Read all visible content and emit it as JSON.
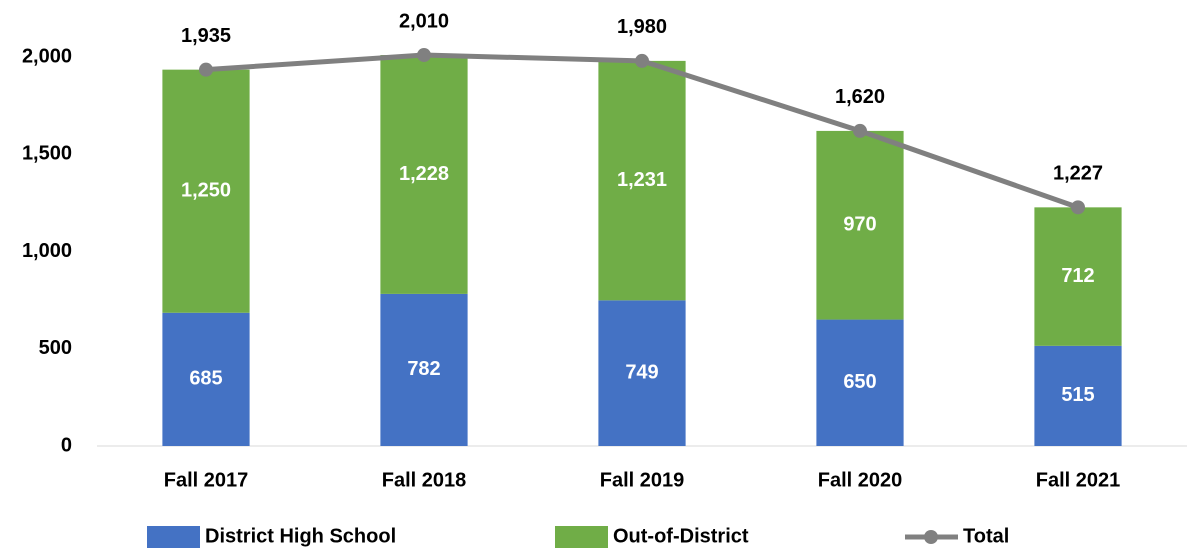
{
  "chart_data": {
    "type": "bar",
    "categories": [
      "Fall 2017",
      "Fall 2018",
      "Fall 2019",
      "Fall 2020",
      "Fall 2021"
    ],
    "series": [
      {
        "name": "District High School",
        "type": "bar",
        "color": "#4472c4",
        "values": [
          685,
          782,
          749,
          650,
          515
        ],
        "value_labels": [
          "685",
          "782",
          "749",
          "650",
          "515"
        ]
      },
      {
        "name": "Out-of-District",
        "type": "bar",
        "color": "#70ad47",
        "values": [
          1250,
          1228,
          1231,
          970,
          712
        ],
        "value_labels": [
          "1,250",
          "1,228",
          "1,231",
          "970",
          "712"
        ]
      },
      {
        "name": "Total",
        "type": "line",
        "color": "#808080",
        "values": [
          1935,
          2010,
          1980,
          1620,
          1227
        ],
        "value_labels": [
          "1,935",
          "2,010",
          "1,980",
          "1,620",
          "1,227"
        ]
      }
    ],
    "stacked": true,
    "ylim": [
      0,
      2200
    ],
    "yticks": [
      0,
      500,
      {
        "value": 1000,
        "label": "1,000"
      },
      {
        "value": 1500,
        "label": "1,500"
      },
      {
        "value": 2000,
        "label": "2,000"
      }
    ],
    "grid": false,
    "legend": "bottom"
  }
}
